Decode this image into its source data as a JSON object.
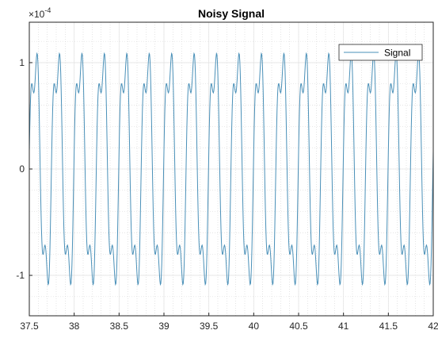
{
  "chart_data": {
    "type": "line",
    "title": "Noisy Signal",
    "xlabel": "",
    "ylabel": "",
    "xlim": [
      37.5,
      42
    ],
    "ylim": [
      -0.000138,
      0.000138
    ],
    "x_ticks": [
      37.5,
      38,
      38.5,
      39,
      39.5,
      40,
      40.5,
      41,
      41.5,
      42
    ],
    "x_tick_labels": [
      "37.5",
      "38",
      "38.5",
      "39",
      "39.5",
      "40",
      "40.5",
      "41",
      "41.5",
      "42"
    ],
    "y_ticks": [
      -0.0001,
      0,
      0.0001
    ],
    "y_tick_labels": [
      "-1",
      "0",
      "1"
    ],
    "y_exponent": {
      "base": "×10",
      "power": "-4"
    },
    "grid": true,
    "minor_grid": true,
    "legend_placement": "top-right",
    "series": [
      {
        "name": "Signal",
        "color": "#4a90b8",
        "model": {
          "components": [
            {
              "amplitude": 0.000105,
              "frequency_hz": 4.0,
              "phase_rad": 0.0
            },
            {
              "amplitude": 3e-05,
              "frequency_hz": 12.0,
              "phase_rad": 0.6
            }
          ],
          "sample_rate_hz": 200
        }
      }
    ]
  }
}
